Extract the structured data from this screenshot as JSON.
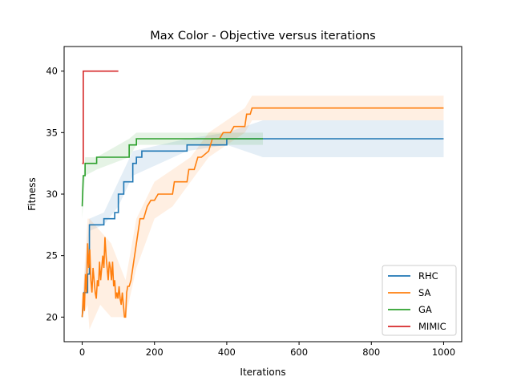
{
  "chart_data": {
    "type": "line",
    "title": "Max Color - Objective versus iterations",
    "xlabel": "Iterations",
    "ylabel": "Fitness",
    "xlim": [
      -50,
      1050
    ],
    "ylim": [
      18,
      42
    ],
    "xticks": [
      0,
      200,
      400,
      600,
      800,
      1000
    ],
    "yticks": [
      20,
      25,
      30,
      35,
      40
    ],
    "legend_position": "lower-right",
    "grid": false,
    "series": [
      {
        "name": "RHC",
        "color": "#1f77b4",
        "points": [
          [
            0,
            20
          ],
          [
            5,
            22
          ],
          [
            15,
            22
          ],
          [
            15,
            23.5
          ],
          [
            20,
            23.5
          ],
          [
            20,
            27.5
          ],
          [
            40,
            27.5
          ],
          [
            60,
            27.5
          ],
          [
            60,
            28
          ],
          [
            90,
            28
          ],
          [
            90,
            28.5
          ],
          [
            100,
            28.5
          ],
          [
            100,
            30
          ],
          [
            115,
            30
          ],
          [
            115,
            31
          ],
          [
            140,
            31
          ],
          [
            140,
            32.5
          ],
          [
            150,
            32.5
          ],
          [
            150,
            33
          ],
          [
            165,
            33
          ],
          [
            165,
            33.5
          ],
          [
            240,
            33.5
          ],
          [
            290,
            33.5
          ],
          [
            290,
            34
          ],
          [
            400,
            34
          ],
          [
            400,
            34.5
          ],
          [
            1000,
            34.5
          ]
        ],
        "band": [
          [
            0,
            20,
            21
          ],
          [
            20,
            27,
            28
          ],
          [
            60,
            27.5,
            28.5
          ],
          [
            100,
            29,
            31
          ],
          [
            140,
            31.5,
            33.5
          ],
          [
            290,
            33.5,
            34.5
          ],
          [
            400,
            34,
            35
          ],
          [
            500,
            33,
            36
          ],
          [
            1000,
            33,
            36
          ]
        ]
      },
      {
        "name": "SA",
        "color": "#ff7f0e",
        "points": [
          [
            0,
            20
          ],
          [
            3,
            22
          ],
          [
            6,
            20.5
          ],
          [
            9,
            23.5
          ],
          [
            12,
            22
          ],
          [
            15,
            26
          ],
          [
            18,
            24
          ],
          [
            21,
            25.5
          ],
          [
            24,
            23
          ],
          [
            27,
            22
          ],
          [
            30,
            24
          ],
          [
            33,
            23
          ],
          [
            36,
            22
          ],
          [
            39,
            21.5
          ],
          [
            42,
            23
          ],
          [
            45,
            22.5
          ],
          [
            48,
            24.5
          ],
          [
            51,
            23
          ],
          [
            54,
            24
          ],
          [
            57,
            25
          ],
          [
            60,
            24
          ],
          [
            63,
            26.5
          ],
          [
            66,
            25
          ],
          [
            69,
            24
          ],
          [
            72,
            23
          ],
          [
            75,
            24.5
          ],
          [
            78,
            24
          ],
          [
            81,
            23
          ],
          [
            84,
            24.5
          ],
          [
            87,
            22.5
          ],
          [
            90,
            23
          ],
          [
            93,
            21.5
          ],
          [
            96,
            22
          ],
          [
            99,
            21.5
          ],
          [
            102,
            22.5
          ],
          [
            105,
            21.5
          ],
          [
            108,
            21
          ],
          [
            111,
            22
          ],
          [
            114,
            21
          ],
          [
            117,
            20
          ],
          [
            120,
            20
          ],
          [
            123,
            22
          ],
          [
            126,
            22.5
          ],
          [
            130,
            22.5
          ],
          [
            135,
            23
          ],
          [
            140,
            24
          ],
          [
            145,
            25
          ],
          [
            150,
            26
          ],
          [
            155,
            27
          ],
          [
            160,
            28
          ],
          [
            170,
            28
          ],
          [
            180,
            29
          ],
          [
            190,
            29.5
          ],
          [
            200,
            29.5
          ],
          [
            210,
            30
          ],
          [
            250,
            30
          ],
          [
            255,
            31
          ],
          [
            290,
            31
          ],
          [
            295,
            32
          ],
          [
            310,
            32
          ],
          [
            320,
            33
          ],
          [
            330,
            33
          ],
          [
            350,
            33.5
          ],
          [
            355,
            34
          ],
          [
            360,
            34.5
          ],
          [
            380,
            34.5
          ],
          [
            390,
            35
          ],
          [
            410,
            35
          ],
          [
            420,
            35.5
          ],
          [
            450,
            35.5
          ],
          [
            455,
            36.5
          ],
          [
            465,
            36.5
          ],
          [
            470,
            37
          ],
          [
            1000,
            37
          ]
        ],
        "band": [
          [
            0,
            20,
            21
          ],
          [
            15,
            21,
            28
          ],
          [
            20,
            19,
            28
          ],
          [
            50,
            21,
            27
          ],
          [
            80,
            20,
            26
          ],
          [
            120,
            20,
            23
          ],
          [
            150,
            24,
            28
          ],
          [
            200,
            28,
            31
          ],
          [
            250,
            29,
            32
          ],
          [
            300,
            31,
            33
          ],
          [
            350,
            33,
            35
          ],
          [
            400,
            34,
            36
          ],
          [
            450,
            35,
            37
          ],
          [
            470,
            36,
            38
          ],
          [
            1000,
            36,
            38
          ]
        ]
      },
      {
        "name": "GA",
        "color": "#2ca02c",
        "points": [
          [
            0,
            29
          ],
          [
            3,
            31.5
          ],
          [
            8,
            31.5
          ],
          [
            8,
            32.5
          ],
          [
            40,
            32.5
          ],
          [
            40,
            33
          ],
          [
            130,
            33
          ],
          [
            130,
            34
          ],
          [
            150,
            34
          ],
          [
            150,
            34.5
          ],
          [
            500,
            34.5
          ]
        ],
        "band": [
          [
            0,
            28,
            30
          ],
          [
            8,
            31.5,
            33
          ],
          [
            40,
            32,
            33
          ],
          [
            130,
            33,
            34.5
          ],
          [
            150,
            34,
            35
          ],
          [
            290,
            34,
            35
          ],
          [
            500,
            34,
            35
          ]
        ]
      },
      {
        "name": "MIMIC",
        "color": "#d62728",
        "points": [
          [
            0,
            32.5
          ],
          [
            3,
            32.5
          ],
          [
            3,
            40
          ],
          [
            100,
            40
          ]
        ],
        "band": [
          [
            0,
            32.5,
            32.5
          ],
          [
            3,
            40,
            40
          ],
          [
            100,
            40,
            40
          ]
        ]
      }
    ]
  }
}
